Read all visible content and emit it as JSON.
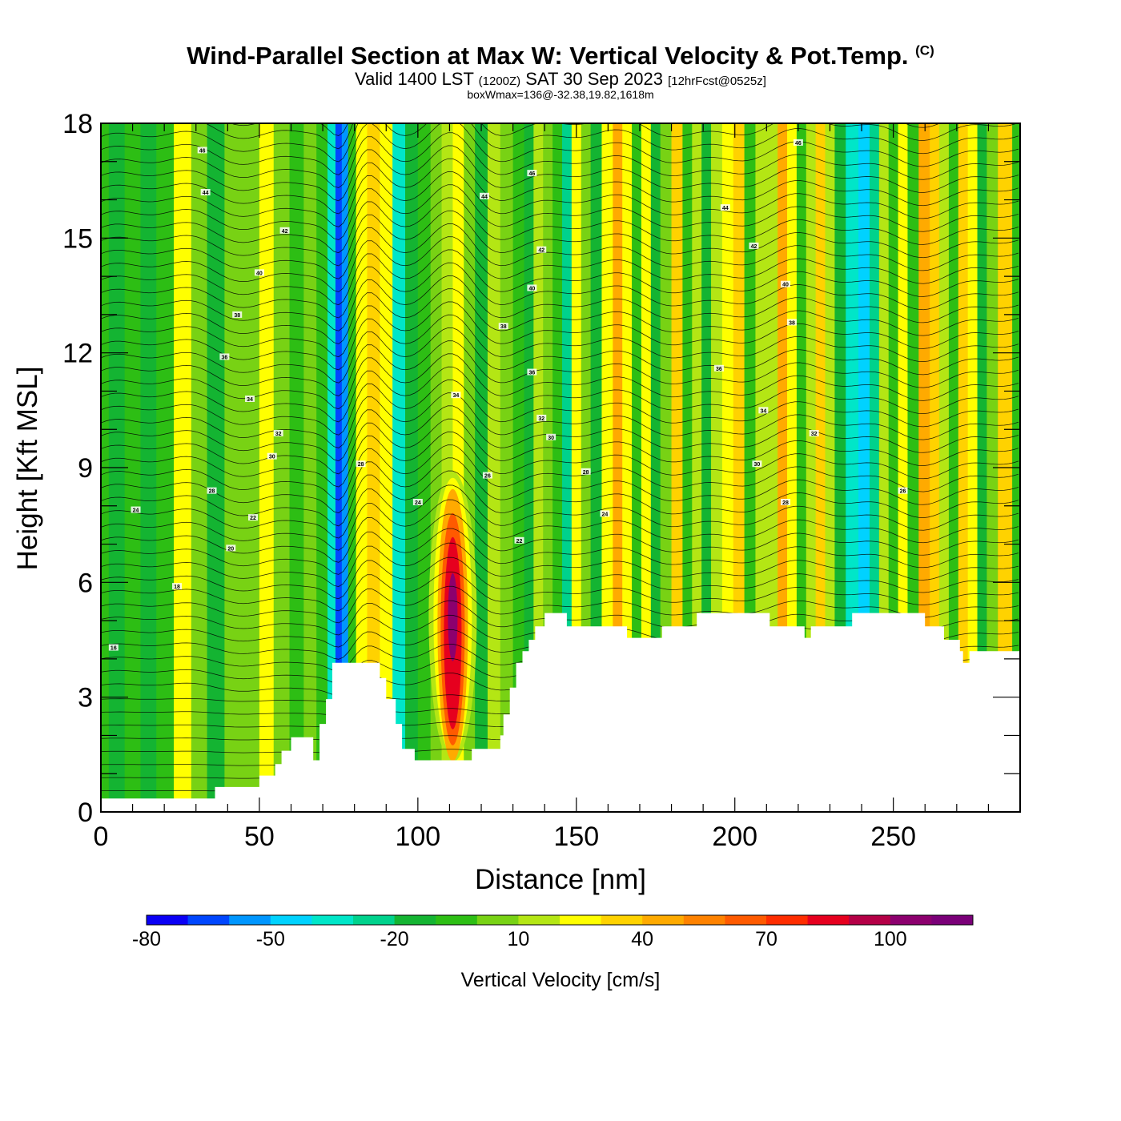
{
  "titles": {
    "main": "Wind-Parallel Section at Max W: Vertical Velocity & Pot.Temp.",
    "copyright_mark": "(C)",
    "valid_prefix": "Valid 1400 LST",
    "utc": "(1200Z)",
    "valid_date": "SAT 30 Sep 2023",
    "forecast": "[12hrFcst@0525z]",
    "box_wmax": "boxWmax=136@-32.38,19.82,1618m"
  },
  "chart_data": {
    "type": "heatmap",
    "xlabel": "Distance [nm]",
    "ylabel": "Height [Kft MSL]",
    "xlim": [
      0,
      290
    ],
    "ylim": [
      0,
      18
    ],
    "x_ticks": [
      0,
      50,
      100,
      150,
      200,
      250
    ],
    "y_ticks": [
      0,
      3,
      6,
      9,
      12,
      15,
      18
    ],
    "colorbar": {
      "label": "Vertical Velocity [cm/s]",
      "tick_labels": [
        "-80",
        "-50",
        "-20",
        "10",
        "40",
        "70",
        "100"
      ],
      "tick_values": [
        -80,
        -50,
        -20,
        10,
        40,
        70,
        100
      ],
      "levels": [
        -80,
        -70,
        -60,
        -50,
        -40,
        -30,
        -20,
        -10,
        0,
        10,
        20,
        30,
        40,
        50,
        60,
        70,
        80,
        90,
        100,
        110,
        120
      ],
      "colors": [
        "#0a00f5",
        "#0046ff",
        "#0096ff",
        "#00d2ff",
        "#00e6c8",
        "#00d28c",
        "#14b432",
        "#2dbe14",
        "#78d214",
        "#b4e614",
        "#ffff00",
        "#ffd200",
        "#ffaa00",
        "#ff8200",
        "#ff5a00",
        "#ff2d00",
        "#e6001e",
        "#b40046",
        "#8c006e",
        "#7a0078"
      ]
    },
    "w_max": {
      "value_cm_s": 136,
      "x_nm": 111,
      "height_kft": 5.3
    },
    "terrain_top_kft": [
      [
        0,
        0.35
      ],
      [
        36,
        0.35
      ],
      [
        36,
        0.65
      ],
      [
        50,
        0.65
      ],
      [
        50,
        0.95
      ],
      [
        55,
        0.95
      ],
      [
        55,
        1.25
      ],
      [
        57,
        1.25
      ],
      [
        57,
        1.6
      ],
      [
        60,
        1.6
      ],
      [
        60,
        1.95
      ],
      [
        67,
        1.95
      ],
      [
        67,
        1.35
      ],
      [
        69,
        1.35
      ],
      [
        69,
        2.3
      ],
      [
        71,
        2.3
      ],
      [
        71,
        2.95
      ],
      [
        73,
        2.95
      ],
      [
        73,
        3.9
      ],
      [
        88,
        3.9
      ],
      [
        88,
        3.5
      ],
      [
        90,
        3.5
      ],
      [
        90,
        2.95
      ],
      [
        93,
        2.95
      ],
      [
        93,
        2.3
      ],
      [
        95,
        2.3
      ],
      [
        95,
        1.65
      ],
      [
        99,
        1.65
      ],
      [
        99,
        1.35
      ],
      [
        117,
        1.35
      ],
      [
        117,
        1.65
      ],
      [
        126,
        1.65
      ],
      [
        126,
        2.0
      ],
      [
        127,
        2.0
      ],
      [
        127,
        2.55
      ],
      [
        129,
        2.55
      ],
      [
        129,
        3.25
      ],
      [
        131,
        3.25
      ],
      [
        131,
        3.9
      ],
      [
        133,
        3.9
      ],
      [
        133,
        4.2
      ],
      [
        135,
        4.2
      ],
      [
        135,
        4.5
      ],
      [
        137,
        4.5
      ],
      [
        137,
        4.85
      ],
      [
        140,
        4.85
      ],
      [
        140,
        5.2
      ],
      [
        147,
        5.2
      ],
      [
        147,
        4.85
      ],
      [
        166,
        4.85
      ],
      [
        166,
        4.55
      ],
      [
        177,
        4.55
      ],
      [
        177,
        4.85
      ],
      [
        188,
        4.85
      ],
      [
        188,
        5.2
      ],
      [
        211,
        5.2
      ],
      [
        211,
        4.85
      ],
      [
        222,
        4.85
      ],
      [
        222,
        4.55
      ],
      [
        224,
        4.55
      ],
      [
        224,
        4.85
      ],
      [
        237,
        4.85
      ],
      [
        237,
        5.2
      ],
      [
        260,
        5.2
      ],
      [
        260,
        4.85
      ],
      [
        266,
        4.85
      ],
      [
        266,
        4.5
      ],
      [
        271,
        4.5
      ],
      [
        271,
        4.2
      ],
      [
        272,
        4.2
      ],
      [
        272,
        3.9
      ],
      [
        274,
        3.9
      ],
      [
        274,
        4.2
      ],
      [
        290,
        4.2
      ]
    ],
    "w_field_columns": [
      {
        "x": 0,
        "w": -8
      },
      {
        "x": 5,
        "w": -12
      },
      {
        "x": 10,
        "w": -6
      },
      {
        "x": 15,
        "w": -14
      },
      {
        "x": 20,
        "w": -4
      },
      {
        "x": 26,
        "w": 22
      },
      {
        "x": 31,
        "w": 0
      },
      {
        "x": 36,
        "w": -12
      },
      {
        "x": 42,
        "w": 2
      },
      {
        "x": 48,
        "w": 6
      },
      {
        "x": 52,
        "w": 20
      },
      {
        "x": 57,
        "w": 2
      },
      {
        "x": 62,
        "w": -10
      },
      {
        "x": 66,
        "w": 4
      },
      {
        "x": 70,
        "w": -5
      },
      {
        "x": 73,
        "w": -38
      },
      {
        "x": 75,
        "w": -68
      },
      {
        "x": 77,
        "w": -52
      },
      {
        "x": 79,
        "w": -4
      },
      {
        "x": 82,
        "w": 25
      },
      {
        "x": 86,
        "w": 38
      },
      {
        "x": 90,
        "w": 22
      },
      {
        "x": 94,
        "w": -35
      },
      {
        "x": 98,
        "w": -15
      },
      {
        "x": 102,
        "w": -6
      },
      {
        "x": 106,
        "w": 3
      },
      {
        "x": 109,
        "w": 16
      },
      {
        "x": 113,
        "w": 28
      },
      {
        "x": 116,
        "w": 2
      },
      {
        "x": 120,
        "w": -14
      },
      {
        "x": 124,
        "w": 14
      },
      {
        "x": 128,
        "w": 8
      },
      {
        "x": 132,
        "w": -2
      },
      {
        "x": 135,
        "w": -14
      },
      {
        "x": 138,
        "w": 18
      },
      {
        "x": 141,
        "w": 2
      },
      {
        "x": 144,
        "w": -10
      },
      {
        "x": 147,
        "w": -28
      },
      {
        "x": 150,
        "w": 22
      },
      {
        "x": 153,
        "w": 6
      },
      {
        "x": 156,
        "w": -14
      },
      {
        "x": 160,
        "w": 28
      },
      {
        "x": 163,
        "w": 44
      },
      {
        "x": 166,
        "w": 28
      },
      {
        "x": 169,
        "w": -4
      },
      {
        "x": 172,
        "w": 20
      },
      {
        "x": 175,
        "w": -16
      },
      {
        "x": 178,
        "w": 5
      },
      {
        "x": 182,
        "w": 32
      },
      {
        "x": 185,
        "w": -8
      },
      {
        "x": 188,
        "w": 18
      },
      {
        "x": 191,
        "w": -14
      },
      {
        "x": 194,
        "w": 14
      },
      {
        "x": 198,
        "w": 22
      },
      {
        "x": 201,
        "w": 38
      },
      {
        "x": 205,
        "w": -4
      },
      {
        "x": 208,
        "w": 18
      },
      {
        "x": 212,
        "w": 10
      },
      {
        "x": 215,
        "w": 44
      },
      {
        "x": 218,
        "w": 28
      },
      {
        "x": 221,
        "w": -8
      },
      {
        "x": 224,
        "w": 10
      },
      {
        "x": 227,
        "w": 32
      },
      {
        "x": 230,
        "w": 12
      },
      {
        "x": 233,
        "w": -12
      },
      {
        "x": 237,
        "w": -32
      },
      {
        "x": 241,
        "w": -48
      },
      {
        "x": 244,
        "w": -22
      },
      {
        "x": 247,
        "w": 12
      },
      {
        "x": 250,
        "w": -6
      },
      {
        "x": 253,
        "w": 24
      },
      {
        "x": 256,
        "w": -2
      },
      {
        "x": 260,
        "w": 44
      },
      {
        "x": 263,
        "w": 30
      },
      {
        "x": 266,
        "w": 14
      },
      {
        "x": 269,
        "w": -6
      },
      {
        "x": 272,
        "w": 30
      },
      {
        "x": 275,
        "w": 24
      },
      {
        "x": 278,
        "w": -12
      },
      {
        "x": 281,
        "w": 4
      },
      {
        "x": 285,
        "w": 30
      },
      {
        "x": 290,
        "w": -6
      }
    ],
    "updraft_core": {
      "x_nm": 111,
      "base_kft": 1.3,
      "top_kft": 8.9,
      "peak_kft": 5.3,
      "peak_cm_s": 136
    },
    "theta_contours": {
      "labels": [
        {
          "text": "46",
          "x": 32,
          "y": 17.3
        },
        {
          "text": "44",
          "x": 33,
          "y": 16.2
        },
        {
          "text": "42",
          "x": 58,
          "y": 15.2
        },
        {
          "text": "40",
          "x": 50,
          "y": 14.1
        },
        {
          "text": "38",
          "x": 43,
          "y": 13.0
        },
        {
          "text": "36",
          "x": 39,
          "y": 11.9
        },
        {
          "text": "34",
          "x": 47,
          "y": 10.8
        },
        {
          "text": "32",
          "x": 56,
          "y": 9.9
        },
        {
          "text": "30",
          "x": 54,
          "y": 9.3
        },
        {
          "text": "28",
          "x": 35,
          "y": 8.4
        },
        {
          "text": "24",
          "x": 11,
          "y": 7.9
        },
        {
          "text": "22",
          "x": 48,
          "y": 7.7
        },
        {
          "text": "20",
          "x": 41,
          "y": 6.9
        },
        {
          "text": "18",
          "x": 24,
          "y": 5.9
        },
        {
          "text": "16",
          "x": 4,
          "y": 4.3
        },
        {
          "text": "46",
          "x": 136,
          "y": 16.7
        },
        {
          "text": "44",
          "x": 121,
          "y": 16.1
        },
        {
          "text": "42",
          "x": 139,
          "y": 14.7
        },
        {
          "text": "40",
          "x": 136,
          "y": 13.7
        },
        {
          "text": "38",
          "x": 127,
          "y": 12.7
        },
        {
          "text": "36",
          "x": 136,
          "y": 11.5
        },
        {
          "text": "34",
          "x": 112,
          "y": 10.9
        },
        {
          "text": "32",
          "x": 139,
          "y": 10.3
        },
        {
          "text": "30",
          "x": 142,
          "y": 9.8
        },
        {
          "text": "28",
          "x": 82,
          "y": 9.1
        },
        {
          "text": "26",
          "x": 122,
          "y": 8.8
        },
        {
          "text": "24",
          "x": 100,
          "y": 8.1
        },
        {
          "text": "28",
          "x": 153,
          "y": 8.9
        },
        {
          "text": "24",
          "x": 159,
          "y": 7.8
        },
        {
          "text": "22",
          "x": 132,
          "y": 7.1
        },
        {
          "text": "46",
          "x": 220,
          "y": 17.5
        },
        {
          "text": "44",
          "x": 197,
          "y": 15.8
        },
        {
          "text": "42",
          "x": 206,
          "y": 14.8
        },
        {
          "text": "40",
          "x": 216,
          "y": 13.8
        },
        {
          "text": "38",
          "x": 218,
          "y": 12.8
        },
        {
          "text": "36",
          "x": 195,
          "y": 11.6
        },
        {
          "text": "34",
          "x": 209,
          "y": 10.5
        },
        {
          "text": "32",
          "x": 225,
          "y": 9.9
        },
        {
          "text": "30",
          "x": 207,
          "y": 9.1
        },
        {
          "text": "28",
          "x": 216,
          "y": 8.1
        },
        {
          "text": "26",
          "x": 253,
          "y": 8.4
        }
      ]
    }
  }
}
